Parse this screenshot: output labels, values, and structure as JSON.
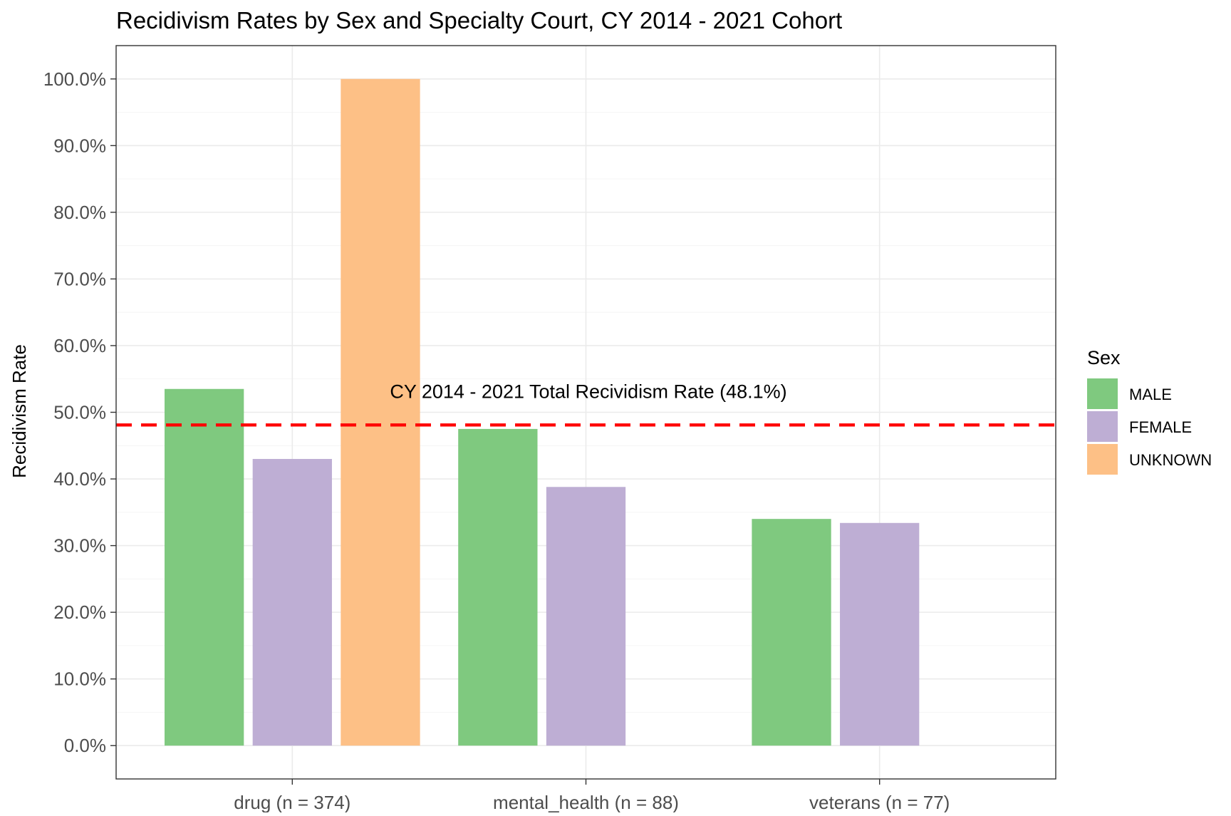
{
  "colors": {
    "MALE": "#7fc97f",
    "FEMALE": "#beaed4",
    "UNKNOWN": "#fdc086",
    "reference_line": "#ff0000",
    "background": "#ffffff",
    "grid": "#ebebeb"
  },
  "chart_data": {
    "type": "bar",
    "title": "Recidivism Rates by Sex and Specialty Court, CY 2014 - 2021 Cohort",
    "xlabel": "",
    "ylabel": "Recidivism Rate",
    "categories": [
      "drug (n = 374)",
      "mental_health (n = 88)",
      "veterans (n = 77)"
    ],
    "series": [
      {
        "name": "MALE",
        "values": [
          53.5,
          47.5,
          34.0
        ]
      },
      {
        "name": "FEMALE",
        "values": [
          43.0,
          38.8,
          33.4
        ]
      },
      {
        "name": "UNKNOWN",
        "values": [
          100.0,
          null,
          null
        ]
      }
    ],
    "ylim": [
      -5,
      105
    ],
    "yticks": [
      0,
      10,
      20,
      30,
      40,
      50,
      60,
      70,
      80,
      90,
      100
    ],
    "ytick_labels": [
      "0.0%",
      "10.0%",
      "20.0%",
      "30.0%",
      "40.0%",
      "50.0%",
      "60.0%",
      "70.0%",
      "80.0%",
      "90.0%",
      "100.0%"
    ],
    "grid": true,
    "legend": {
      "title": "Sex",
      "position": "right",
      "entries": [
        "MALE",
        "FEMALE",
        "UNKNOWN"
      ]
    },
    "reference_line": {
      "value": 48.1,
      "style": "dashed",
      "label": "CY 2014 - 2021 Total Recividism Rate (48.1%)"
    }
  }
}
